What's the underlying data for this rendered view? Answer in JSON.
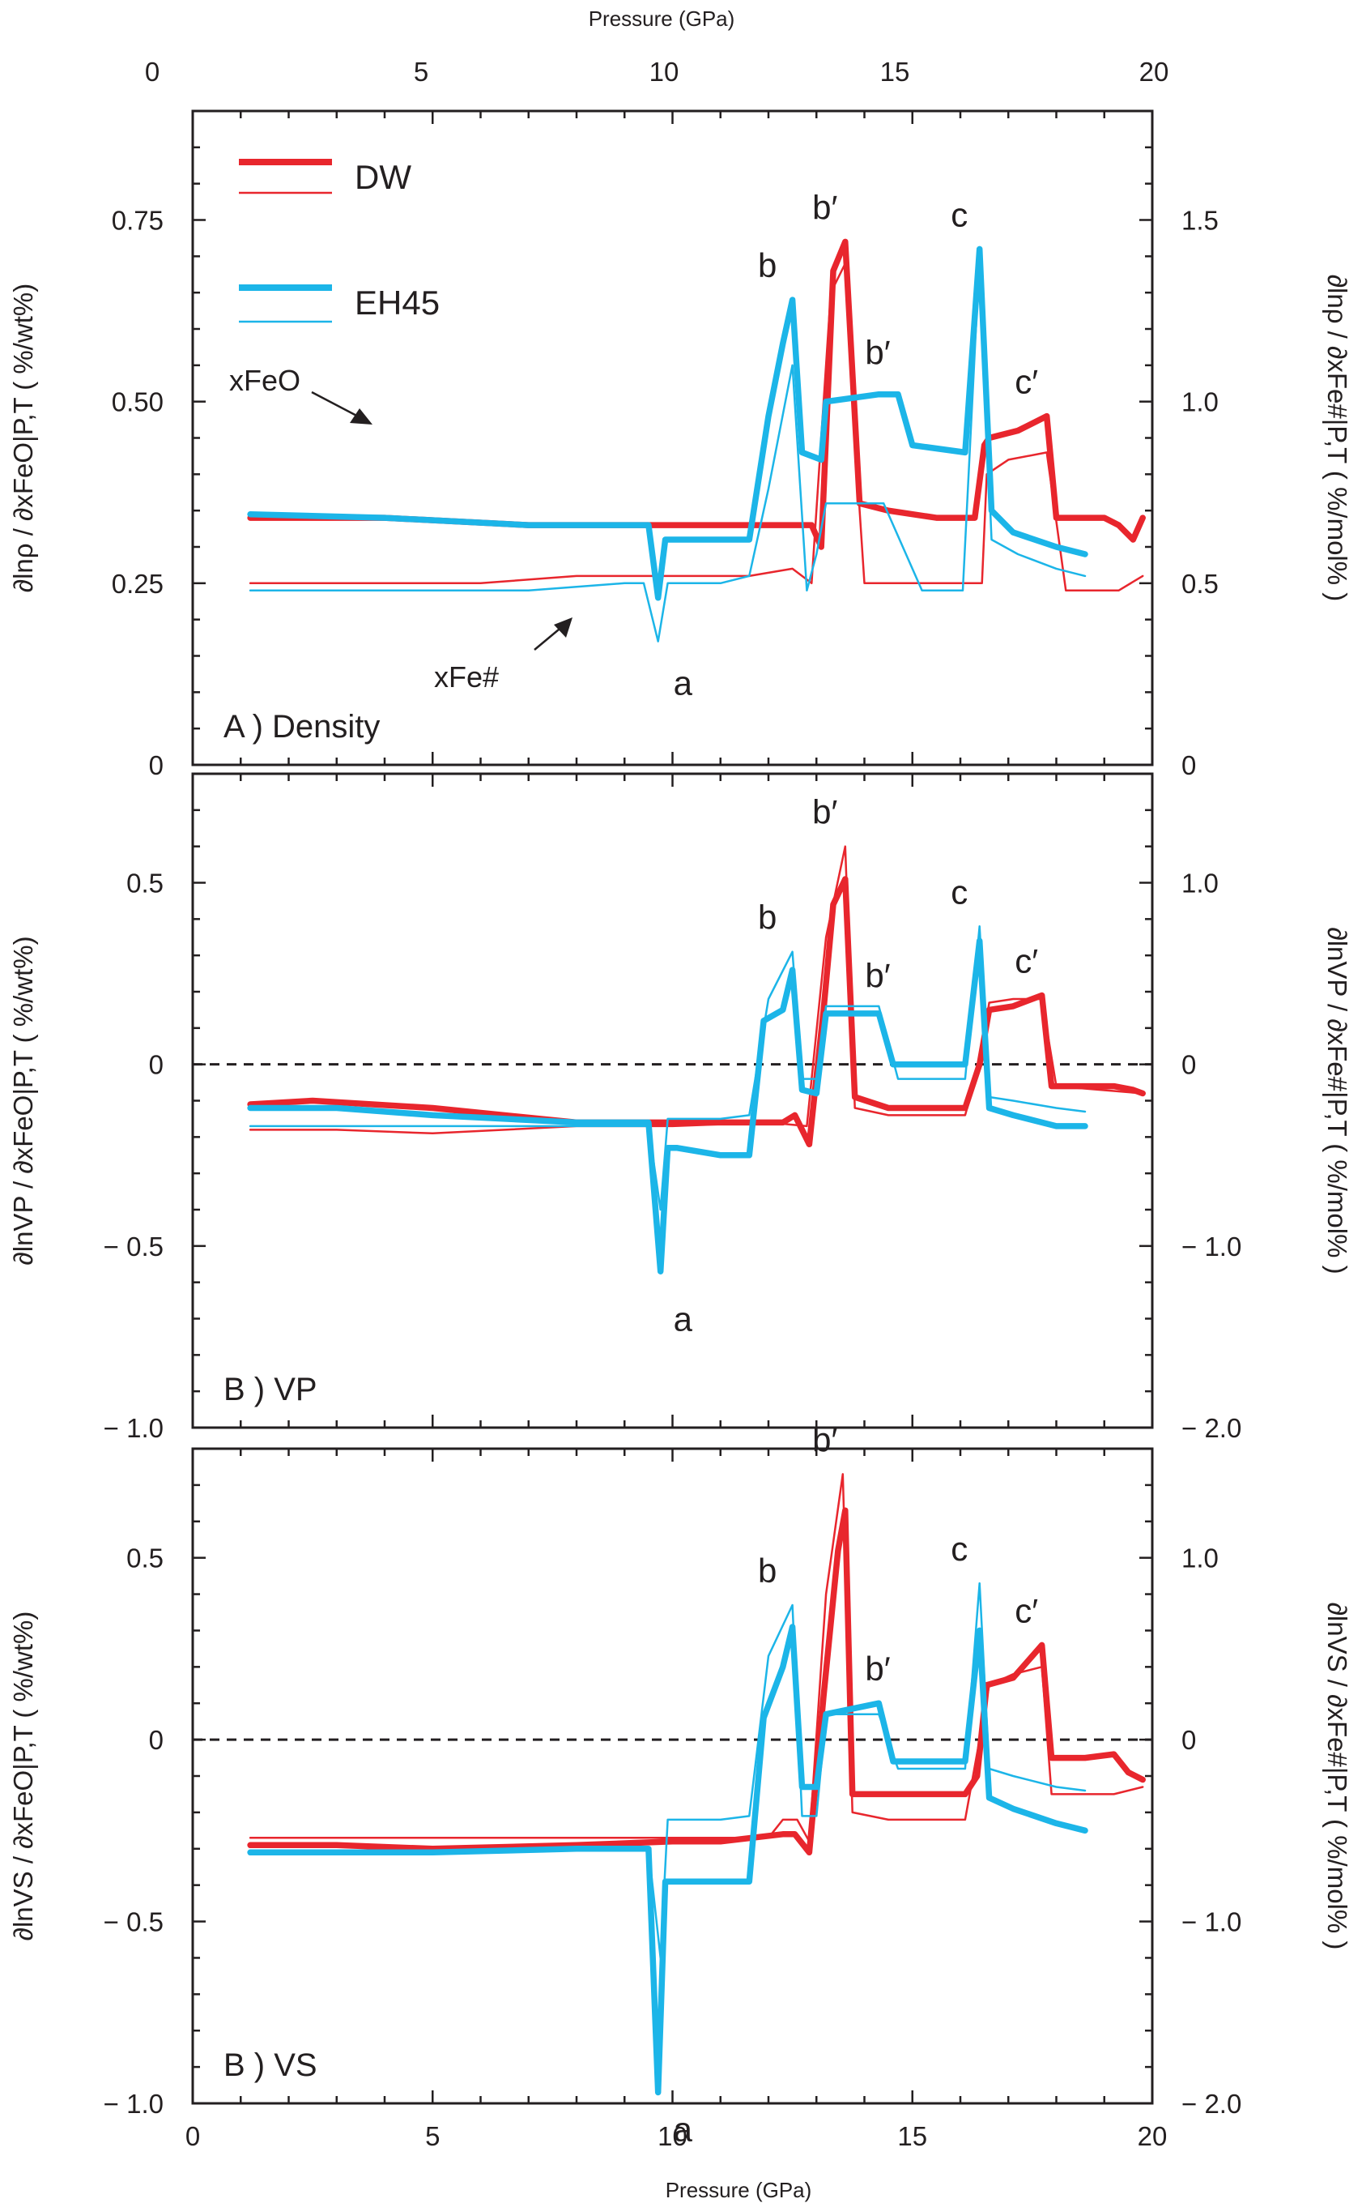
{
  "figure": {
    "top_xlabel": "Pressure (GPa)",
    "bottom_xlabel": "Pressure (GPa)",
    "legend": [
      {
        "name": "DW",
        "color": "#e8262d"
      },
      {
        "name": "EH45",
        "color": "#1cb5e8"
      }
    ],
    "colors": {
      "DW": "#e8262d",
      "EH45": "#1cb5e8",
      "axis": "#231f20"
    }
  },
  "chart_data": [
    {
      "type": "line",
      "id": "density",
      "panel_label": "A ) Density",
      "xlabel": "Pressure (GPa)",
      "xlim": [
        0,
        20
      ],
      "xticks": [
        "0",
        "5",
        "10",
        "15",
        "20"
      ],
      "ylabel_left": "∂lnρ / ∂xFeO|P,T ( %/wt%)",
      "ylabel_right": "∂lnρ / ∂xFe#|P,T ( %/mol% )",
      "ylim_left": [
        0,
        0.9
      ],
      "ylim_right": [
        0,
        1.8
      ],
      "yticks_left": [
        "0",
        "0.25",
        "0.50",
        "0.75"
      ],
      "yticks_right": [
        "0",
        "0.5",
        "1.0",
        "1.5"
      ],
      "zero_line": false,
      "annotations": [
        {
          "text": "xFeO",
          "x": 3.8,
          "y": 0.345
        },
        {
          "text": "xFe#",
          "x": 7.6,
          "y": 0.245
        },
        {
          "text": "a",
          "x": 10.3,
          "y": 0.18
        },
        {
          "text": "b",
          "x": 12.4,
          "y": 0.64
        },
        {
          "text": "b′",
          "x": 13.6,
          "y": 0.72
        },
        {
          "text": "b′",
          "x": 14.7,
          "y": 0.52
        },
        {
          "text": "c",
          "x": 16.4,
          "y": 0.71
        },
        {
          "text": "c′",
          "x": 17.8,
          "y": 0.48
        }
      ],
      "series": [
        {
          "name": "DW",
          "line": "thick",
          "x": [
            1.2,
            4,
            7,
            10,
            11,
            12,
            12.9,
            13.1,
            13.35,
            13.6,
            13.9,
            14.5,
            15.5,
            16.3,
            16.5,
            16.6,
            17.2,
            17.8,
            18,
            19,
            19.3,
            19.6,
            19.8
          ],
          "y": [
            0.34,
            0.34,
            0.33,
            0.33,
            0.33,
            0.33,
            0.33,
            0.3,
            0.68,
            0.72,
            0.36,
            0.35,
            0.34,
            0.34,
            0.44,
            0.45,
            0.46,
            0.48,
            0.34,
            0.34,
            0.33,
            0.31,
            0.34
          ]
        },
        {
          "name": "DW",
          "line": "thin",
          "x": [
            1.2,
            3,
            4,
            6,
            8,
            10,
            11.6,
            12.5,
            12.9,
            13.3,
            13.6,
            13.9,
            14,
            15.6,
            16.2,
            16.45,
            16.55,
            17,
            17.8,
            18.2,
            19.3,
            19.8
          ],
          "y": [
            0.25,
            0.25,
            0.25,
            0.25,
            0.26,
            0.26,
            0.26,
            0.27,
            0.25,
            0.65,
            0.69,
            0.35,
            0.25,
            0.25,
            0.25,
            0.25,
            0.4,
            0.42,
            0.43,
            0.24,
            0.24,
            0.26
          ]
        },
        {
          "name": "EH45",
          "line": "thick",
          "x": [
            1.2,
            4,
            7,
            9.5,
            9.7,
            9.85,
            10,
            11.0,
            11.6,
            12.0,
            12.3,
            12.5,
            12.7,
            13.1,
            13.2,
            14.3,
            14.7,
            15.0,
            16.1,
            16.4,
            16.65,
            17.1,
            18.0,
            18.6
          ],
          "y": [
            0.345,
            0.34,
            0.33,
            0.33,
            0.23,
            0.31,
            0.31,
            0.31,
            0.31,
            0.48,
            0.58,
            0.64,
            0.43,
            0.42,
            0.5,
            0.51,
            0.51,
            0.44,
            0.43,
            0.71,
            0.35,
            0.32,
            0.3,
            0.29
          ]
        },
        {
          "name": "EH45",
          "line": "thin",
          "x": [
            1.2,
            4,
            7,
            9,
            9.4,
            9.7,
            9.9,
            11.0,
            11.6,
            12.0,
            12.5,
            12.8,
            13.0,
            13.2,
            14.4,
            15.2,
            16.05,
            16.4,
            16.65,
            17.2,
            18.0,
            18.6
          ],
          "y": [
            0.24,
            0.24,
            0.24,
            0.25,
            0.25,
            0.17,
            0.25,
            0.25,
            0.26,
            0.38,
            0.55,
            0.24,
            0.29,
            0.36,
            0.36,
            0.24,
            0.24,
            0.7,
            0.31,
            0.29,
            0.27,
            0.26
          ]
        }
      ]
    },
    {
      "type": "line",
      "id": "vp",
      "panel_label": "B ) VP",
      "xlabel": "Pressure (GPa)",
      "xlim": [
        0,
        20
      ],
      "xticks": [
        "0",
        "5",
        "10",
        "15",
        "20"
      ],
      "ylabel_left": "∂lnVP / ∂xFeO|P,T ( %/wt%)",
      "ylabel_right": "∂lnVP / ∂xFe#|P,T ( %/mol% )",
      "ylim_left": [
        -1.0,
        0.8
      ],
      "ylim_right": [
        -2.0,
        1.6
      ],
      "yticks_left": [
        "− 1.0",
        "− 0.5",
        "0",
        "0.5"
      ],
      "yticks_right": [
        "− 2.0",
        "− 1.0",
        "0",
        "1.0"
      ],
      "zero_line": true,
      "annotations": [
        {
          "text": "a",
          "x": 10.3,
          "y": -0.6
        },
        {
          "text": "b",
          "x": 12.4,
          "y": 0.31
        },
        {
          "text": "b′",
          "x": 13.6,
          "y": 0.6
        },
        {
          "text": "b′",
          "x": 14.7,
          "y": 0.15
        },
        {
          "text": "c",
          "x": 16.4,
          "y": 0.38
        },
        {
          "text": "c′",
          "x": 17.8,
          "y": 0.19
        }
      ],
      "series": [
        {
          "name": "DW",
          "line": "thick",
          "x": [
            1.2,
            2.5,
            5,
            8,
            10,
            11,
            12.3,
            12.55,
            12.85,
            13.15,
            13.35,
            13.6,
            13.8,
            14.5,
            16.1,
            16.4,
            16.6,
            17.1,
            17.7,
            17.9,
            19.2,
            19.6,
            19.8
          ],
          "y": [
            -0.11,
            -0.1,
            -0.12,
            -0.16,
            -0.16,
            -0.16,
            -0.16,
            -0.14,
            -0.22,
            0.15,
            0.44,
            0.51,
            -0.09,
            -0.12,
            -0.12,
            0.0,
            0.15,
            0.16,
            0.19,
            -0.06,
            -0.06,
            -0.07,
            -0.08
          ]
        },
        {
          "name": "DW",
          "line": "thin",
          "x": [
            1.2,
            3,
            5,
            8,
            10,
            12,
            12.8,
            13.2,
            13.6,
            13.8,
            14.5,
            16.1,
            16.4,
            16.6,
            17.1,
            17.7,
            18,
            19.8
          ],
          "y": [
            -0.18,
            -0.18,
            -0.19,
            -0.17,
            -0.17,
            -0.16,
            -0.17,
            0.35,
            0.6,
            -0.12,
            -0.14,
            -0.14,
            0.0,
            0.17,
            0.18,
            0.18,
            -0.06,
            -0.08
          ]
        },
        {
          "name": "EH45",
          "line": "thick",
          "x": [
            1.2,
            3,
            5,
            8,
            9.5,
            9.75,
            9.9,
            10.1,
            11.0,
            11.6,
            11.9,
            12.3,
            12.5,
            12.7,
            13.0,
            13.2,
            14.3,
            14.6,
            16.1,
            16.4,
            16.6,
            17.1,
            18.0,
            18.6
          ],
          "y": [
            -0.12,
            -0.12,
            -0.14,
            -0.16,
            -0.16,
            -0.57,
            -0.23,
            -0.23,
            -0.25,
            -0.25,
            0.12,
            0.15,
            0.26,
            -0.07,
            -0.08,
            0.14,
            0.14,
            0.0,
            0.0,
            0.34,
            -0.12,
            -0.14,
            -0.17,
            -0.17
          ]
        },
        {
          "name": "EH45",
          "line": "thin",
          "x": [
            1.2,
            3,
            5,
            8,
            9.5,
            9.75,
            9.9,
            11.0,
            11.6,
            12.0,
            12.5,
            12.7,
            13.0,
            13.2,
            14.3,
            14.7,
            16.1,
            16.4,
            16.6,
            17.1,
            18.0,
            18.6
          ],
          "y": [
            -0.17,
            -0.17,
            -0.17,
            -0.17,
            -0.17,
            -0.4,
            -0.15,
            -0.15,
            -0.14,
            0.18,
            0.31,
            -0.04,
            -0.04,
            0.16,
            0.16,
            -0.04,
            -0.04,
            0.38,
            -0.09,
            -0.1,
            -0.12,
            -0.13
          ]
        }
      ]
    },
    {
      "type": "line",
      "id": "vs",
      "panel_label": "B ) VS",
      "xlabel": "Pressure (GPa)",
      "xlim": [
        0,
        20
      ],
      "xticks": [
        "0",
        "5",
        "10",
        "15",
        "20"
      ],
      "ylabel_left": "∂lnVS / ∂xFeO|P,T ( %/wt%)",
      "ylabel_right": "∂lnVS / ∂xFe#|P,T ( %/mol% )",
      "ylim_left": [
        -1.0,
        0.8
      ],
      "ylim_right": [
        -2.0,
        1.6
      ],
      "yticks_left": [
        "− 1.0",
        "− 0.5",
        "0",
        "0.5"
      ],
      "yticks_right": [
        "− 2.0",
        "− 1.0",
        "0",
        "1.0"
      ],
      "zero_line": true,
      "annotations": [
        {
          "text": "a",
          "x": 10.3,
          "y": -0.97
        },
        {
          "text": "b",
          "x": 12.4,
          "y": 0.37
        },
        {
          "text": "b′",
          "x": 13.6,
          "y": 0.73
        },
        {
          "text": "b′",
          "x": 14.7,
          "y": 0.1
        },
        {
          "text": "c",
          "x": 16.4,
          "y": 0.43
        },
        {
          "text": "c′",
          "x": 17.8,
          "y": 0.26
        }
      ],
      "series": [
        {
          "name": "DW",
          "line": "thick",
          "x": [
            1.2,
            3,
            5,
            8,
            10,
            11,
            12.3,
            12.55,
            12.85,
            13.15,
            13.45,
            13.6,
            13.75,
            14.5,
            16.1,
            16.35,
            16.55,
            17.1,
            17.7,
            17.9,
            18.6,
            19.2,
            19.5,
            19.8
          ],
          "y": [
            -0.29,
            -0.29,
            -0.3,
            -0.29,
            -0.28,
            -0.28,
            -0.26,
            -0.26,
            -0.31,
            0.12,
            0.52,
            0.63,
            -0.15,
            -0.15,
            -0.15,
            -0.1,
            0.15,
            0.17,
            0.26,
            -0.05,
            -0.05,
            -0.04,
            -0.09,
            -0.11
          ]
        },
        {
          "name": "DW",
          "line": "thin",
          "x": [
            1.2,
            3,
            5,
            8,
            10,
            12,
            12.3,
            12.6,
            12.85,
            13.2,
            13.55,
            13.75,
            14.5,
            16.1,
            16.4,
            16.6,
            17.1,
            17.7,
            17.9,
            19.2,
            19.8
          ],
          "y": [
            -0.27,
            -0.27,
            -0.27,
            -0.27,
            -0.27,
            -0.27,
            -0.22,
            -0.22,
            -0.28,
            0.4,
            0.73,
            -0.2,
            -0.22,
            -0.22,
            0.0,
            0.15,
            0.18,
            0.2,
            -0.15,
            -0.15,
            -0.13
          ]
        },
        {
          "name": "EH45",
          "line": "thick",
          "x": [
            1.2,
            3,
            5,
            8,
            9.5,
            9.7,
            9.85,
            10.1,
            11.0,
            11.6,
            11.9,
            12.3,
            12.5,
            12.7,
            13.0,
            13.2,
            14.3,
            14.6,
            16.1,
            16.4,
            16.6,
            17.1,
            18.0,
            18.6
          ],
          "y": [
            -0.31,
            -0.31,
            -0.31,
            -0.3,
            -0.3,
            -0.97,
            -0.39,
            -0.39,
            -0.39,
            -0.39,
            0.06,
            0.2,
            0.31,
            -0.13,
            -0.13,
            0.07,
            0.1,
            -0.06,
            -0.06,
            0.3,
            -0.16,
            -0.19,
            -0.23,
            -0.25
          ]
        },
        {
          "name": "EH45",
          "line": "thin",
          "x": [
            1.2,
            3,
            5,
            8,
            9.5,
            9.75,
            9.9,
            11.0,
            11.6,
            12.0,
            12.5,
            12.7,
            13.0,
            13.2,
            14.3,
            14.7,
            16.1,
            16.4,
            16.6,
            17.1,
            18.0,
            18.6
          ],
          "y": [
            -0.31,
            -0.31,
            -0.31,
            -0.3,
            -0.3,
            -0.6,
            -0.22,
            -0.22,
            -0.21,
            0.23,
            0.37,
            -0.21,
            -0.21,
            0.07,
            0.07,
            -0.08,
            -0.08,
            0.43,
            -0.08,
            -0.1,
            -0.13,
            -0.14
          ]
        }
      ]
    }
  ]
}
